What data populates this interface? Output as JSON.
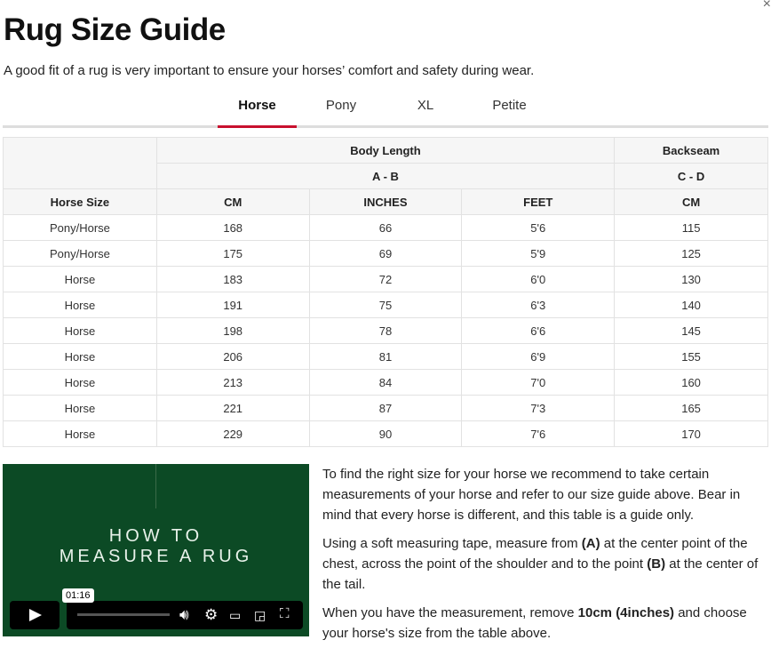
{
  "title": "Rug Size Guide",
  "subtitle": "A good fit of a rug is very important to ensure your horses’ comfort and safety during wear.",
  "close_icon": "×",
  "tabs": [
    "Horse",
    "Pony",
    "XL",
    "Petite"
  ],
  "table": {
    "group1": "Body Length",
    "group2": "Backseam",
    "sub1": "A - B",
    "sub2": "C - D",
    "columns": [
      "Horse Size",
      "CM",
      "INCHES",
      "FEET",
      "CM"
    ],
    "rows": [
      [
        "Pony/Horse",
        "168",
        "66",
        "5'6",
        "115"
      ],
      [
        "Pony/Horse",
        "175",
        "69",
        "5'9",
        "125"
      ],
      [
        "Horse",
        "183",
        "72",
        "6'0",
        "130"
      ],
      [
        "Horse",
        "191",
        "75",
        "6'3",
        "140"
      ],
      [
        "Horse",
        "198",
        "78",
        "6'6",
        "145"
      ],
      [
        "Horse",
        "206",
        "81",
        "6'9",
        "155"
      ],
      [
        "Horse",
        "213",
        "84",
        "7'0",
        "160"
      ],
      [
        "Horse",
        "221",
        "87",
        "7'3",
        "165"
      ],
      [
        "Horse",
        "229",
        "90",
        "7'6",
        "170"
      ]
    ]
  },
  "video": {
    "line1": "HOW TO",
    "line2": "MEASURE A RUG",
    "time": "01:16",
    "bg": "#0c4a25"
  },
  "text": {
    "p1": "To find the right size for your horse we recommend to take certain measurements of your horse and refer to our size guide above. Bear in mind that every horse is different, and this table is a guide only.",
    "p2a": "Using a soft measuring tape, measure from ",
    "p2b": "(A)",
    "p2c": " at the center point of the chest, across the point of the shoulder and to the point ",
    "p2d": "(B)",
    "p2e": " at the center of the tail.",
    "p3a": "When you have the measurement, remove ",
    "p3b": "10cm (4inches)",
    "p3c": " and choose your horse's size from the table above."
  }
}
